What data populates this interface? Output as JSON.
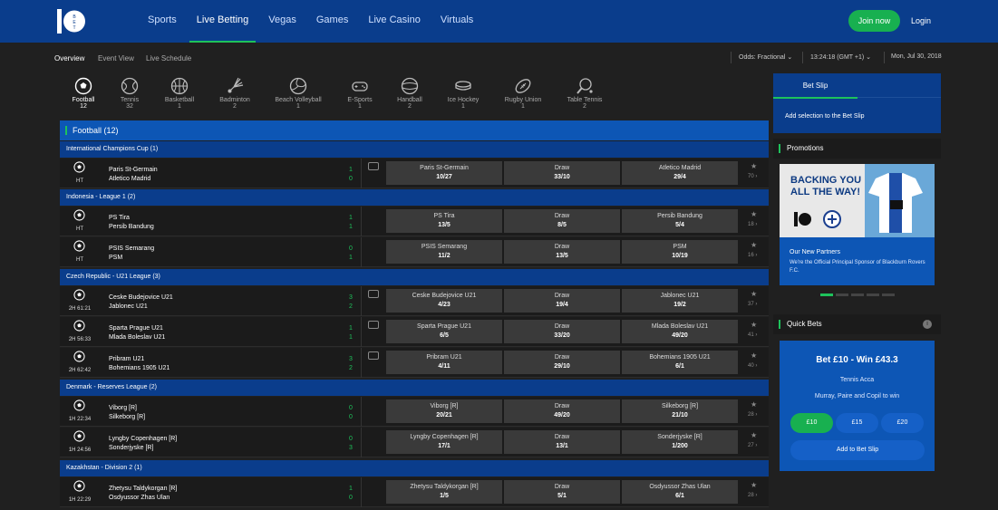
{
  "brand": {
    "logo_text": "10 BET"
  },
  "nav": {
    "items": [
      "Sports",
      "Live Betting",
      "Vegas",
      "Games",
      "Live Casino",
      "Virtuals"
    ],
    "active": "Live Betting",
    "join_label": "Join now",
    "login_label": "Login"
  },
  "subnav": {
    "items": [
      "Overview",
      "Event View",
      "Live Schedule"
    ],
    "odds_label": "Odds: Fractional",
    "time": "13:24:18 (GMT +1)",
    "date": "Mon, Jul 30, 2018"
  },
  "sports": [
    {
      "name": "Football",
      "count": "12",
      "icon": "football-icon"
    },
    {
      "name": "Tennis",
      "count": "32",
      "icon": "tennis-icon"
    },
    {
      "name": "Basketball",
      "count": "1",
      "icon": "basketball-icon"
    },
    {
      "name": "Badminton",
      "count": "2",
      "icon": "badminton-icon"
    },
    {
      "name": "Beach Volleyball",
      "count": "1",
      "icon": "volleyball-icon"
    },
    {
      "name": "E-Sports",
      "count": "1",
      "icon": "gamepad-icon"
    },
    {
      "name": "Handball",
      "count": "2",
      "icon": "handball-icon"
    },
    {
      "name": "Ice Hockey",
      "count": "1",
      "icon": "puck-icon"
    },
    {
      "name": "Rugby Union",
      "count": "1",
      "icon": "rugby-icon"
    },
    {
      "name": "Table Tennis",
      "count": "2",
      "icon": "table-tennis-icon"
    }
  ],
  "main": {
    "sport_header": "Football (12)",
    "draw_label": "Draw",
    "leagues": [
      {
        "name": "International Champions Cup (1)"
      },
      {
        "name": "Indonesia - League 1 (2)"
      },
      {
        "name": "Czech Republic - U21 League (3)"
      },
      {
        "name": "Denmark - Reserves League (2)"
      },
      {
        "name": "Kazakhstan - Division 2 (1)"
      }
    ],
    "matches": [
      {
        "time": "HT",
        "home": "Paris St-Germain",
        "away": "Atletico Madrid",
        "hs": "1",
        "as": "0",
        "stream": true,
        "h_odds": "10/27",
        "d_odds": "33/10",
        "a_odds": "29/4",
        "more": "70"
      },
      {
        "time": "HT",
        "home": "PS Tira",
        "away": "Persib Bandung",
        "hs": "1",
        "as": "1",
        "stream": false,
        "h_odds": "13/5",
        "d_odds": "8/5",
        "a_odds": "5/4",
        "more": "18"
      },
      {
        "time": "HT",
        "home": "PSIS Semarang",
        "away": "PSM",
        "hs": "0",
        "as": "1",
        "stream": false,
        "h_odds": "11/2",
        "d_odds": "13/5",
        "a_odds": "10/19",
        "more": "16"
      },
      {
        "time": "2H 61:21",
        "home": "Ceske Budejovice U21",
        "away": "Jablonec U21",
        "hs": "3",
        "as": "2",
        "stream": true,
        "h_odds": "4/23",
        "d_odds": "19/4",
        "a_odds": "19/2",
        "more": "37"
      },
      {
        "time": "2H 56:33",
        "home": "Sparta Prague U21",
        "away": "Mlada Boleslav U21",
        "hs": "1",
        "as": "1",
        "stream": true,
        "h_odds": "6/5",
        "d_odds": "33/20",
        "a_odds": "49/20",
        "more": "41"
      },
      {
        "time": "2H 62:42",
        "home": "Pribram U21",
        "away": "Bohemians 1905 U21",
        "hs": "3",
        "as": "2",
        "stream": true,
        "h_odds": "4/11",
        "d_odds": "29/10",
        "a_odds": "6/1",
        "more": "40"
      },
      {
        "time": "1H 22:34",
        "home": "Viborg [R]",
        "away": "Silkeborg [R]",
        "hs": "0",
        "as": "0",
        "stream": false,
        "h_odds": "20/21",
        "d_odds": "49/20",
        "a_odds": "21/10",
        "more": "28"
      },
      {
        "time": "1H 24:56",
        "home": "Lyngby Copenhagen [R]",
        "away": "Sonderjyske [R]",
        "hs": "0",
        "as": "3",
        "stream": false,
        "h_odds": "17/1",
        "d_odds": "13/1",
        "a_odds": "1/200",
        "more": "27"
      },
      {
        "time": "1H 22:29",
        "home": "Zhetysu Taldykorgan [R]",
        "away": "Osdyussor Zhas Ulan",
        "hs": "1",
        "as": "0",
        "stream": false,
        "h_odds": "1/5",
        "d_odds": "5/1",
        "a_odds": "6/1",
        "more": "28"
      }
    ]
  },
  "right": {
    "betslip_tab": "Bet Slip",
    "betslip_msg": "Add selection to the Bet Slip",
    "promotions_title": "Promotions",
    "promo_banner_line1": "BACKING YOU",
    "promo_banner_line2": "ALL THE WAY!",
    "promo_title": "Our New Partners",
    "promo_desc": "We're the Official Principal Sponsor of Blackburn Rovers F.C.",
    "quickbets_title": "Quick Bets",
    "qb_headline": "Bet £10 - Win £43.3",
    "qb_sub": "Tennis Acca",
    "qb_desc": "Murray, Paire and Copil to win",
    "stakes": [
      "£10",
      "£15",
      "£20"
    ],
    "add_label": "Add to Bet Slip"
  },
  "colors": {
    "brand_blue": "#0a3d8c",
    "accent_green": "#1ec25b",
    "row_bg": "#1b1b1b"
  }
}
